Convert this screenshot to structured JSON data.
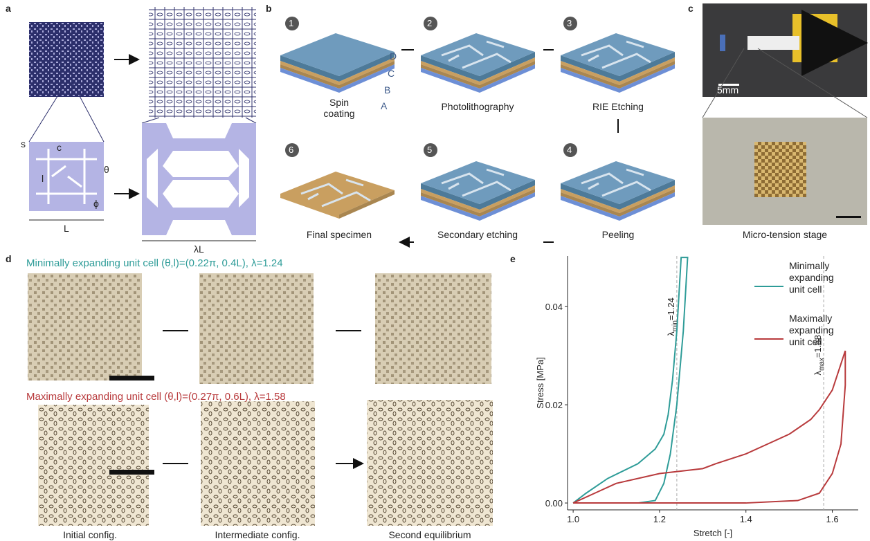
{
  "panels": {
    "a": {
      "letter": "a",
      "s": "s",
      "c": "c",
      "theta": "θ",
      "l": "l",
      "phi": "ϕ",
      "L": "L",
      "lambdaL": "λL"
    },
    "b": {
      "letter": "b",
      "steps": [
        {
          "number": 1,
          "label": "Spin coating"
        },
        {
          "number": 2,
          "label": "Photolithography"
        },
        {
          "number": 3,
          "label": "RIE Etching"
        },
        {
          "number": 4,
          "label": "Peeling"
        },
        {
          "number": 5,
          "label": "Secondary etching"
        },
        {
          "number": 6,
          "label": "Final specimen"
        }
      ],
      "layers": [
        "D",
        "C",
        "B",
        "A"
      ]
    },
    "c": {
      "letter": "c",
      "scale": "5mm",
      "caption": "Micro-tension stage"
    },
    "d": {
      "letter": "d",
      "row1": "Minimally expanding unit cell (θ,l)=(0.22π, 0.4L), λ=1.24",
      "row2": "Maximally expanding unit cell (θ,l)=(0.27π, 0.6L), λ=1.58",
      "captions": [
        "Initial config.",
        "Intermediate config.",
        "Second equilibrium"
      ]
    },
    "e": {
      "letter": "e"
    }
  },
  "chart_data": {
    "type": "line",
    "xlabel": "Stretch [-]",
    "ylabel": "Stress [MPa]",
    "xlim": [
      0.987,
      1.66
    ],
    "ylim": [
      -0.0014,
      0.0503
    ],
    "xticks": [
      {
        "value": 1.0,
        "label": "1.0"
      },
      1.2,
      1.4,
      1.6
    ],
    "yticks": [
      {
        "value": 0,
        "label": "0.00"
      },
      0.02,
      0.04
    ],
    "legend": "upper right",
    "series": [
      {
        "name": "Minimally expanding unit cell",
        "color": "#2e9c98",
        "x": [
          1.0,
          1.03,
          1.08,
          1.15,
          1.19,
          1.21,
          1.22,
          1.23,
          1.24,
          1.25,
          1.265,
          1.255,
          1.24,
          1.225,
          1.21,
          1.19,
          1.15,
          1.0
        ],
        "values": [
          0,
          0.002,
          0.005,
          0.008,
          0.011,
          0.014,
          0.018,
          0.025,
          0.035,
          0.05,
          0.05,
          0.035,
          0.02,
          0.01,
          0.004,
          0.0005,
          0,
          0
        ]
      },
      {
        "name": "Maximally expanding unit cell",
        "color": "#b83a3c",
        "x": [
          1.0,
          1.05,
          1.1,
          1.2,
          1.3,
          1.33,
          1.4,
          1.45,
          1.5,
          1.55,
          1.57,
          1.6,
          1.63,
          1.63,
          1.62,
          1.6,
          1.57,
          1.52,
          1.4,
          1.2,
          1.0
        ],
        "values": [
          0,
          0.002,
          0.004,
          0.006,
          0.007,
          0.008,
          0.01,
          0.012,
          0.014,
          0.017,
          0.019,
          0.023,
          0.031,
          0.024,
          0.012,
          0.006,
          0.002,
          0.0005,
          0,
          0,
          0
        ]
      }
    ],
    "annotations": [
      {
        "symbol": "λ",
        "subscript": "min",
        "value": 1.24,
        "label": "=1.24"
      },
      {
        "symbol": "λ",
        "subscript": "max",
        "value": 1.58,
        "label": "=1.58"
      }
    ]
  }
}
